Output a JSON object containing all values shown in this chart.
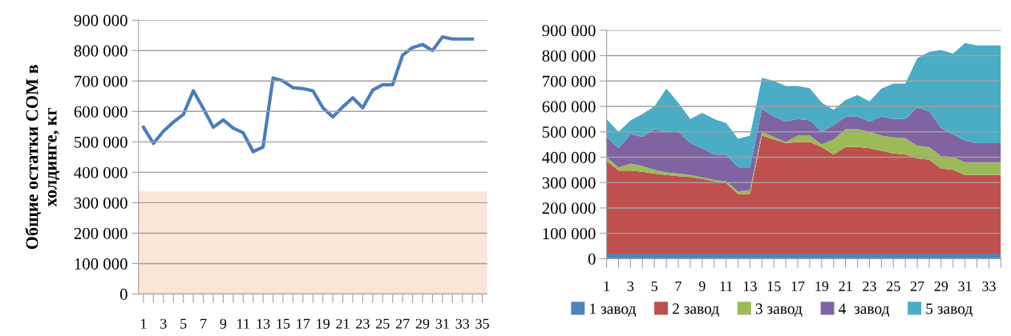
{
  "chart_data": [
    {
      "type": "line",
      "ylabel": "Общие остатки СОМ в\nхолдинге, кг",
      "categories": [
        "1",
        null,
        "3",
        null,
        "5",
        null,
        "7",
        null,
        "9",
        null,
        "11",
        null,
        "13",
        null,
        "15",
        null,
        "17",
        null,
        "19",
        null,
        "21",
        null,
        "23",
        null,
        "25",
        null,
        "27",
        null,
        "29",
        null,
        "31",
        null,
        "33",
        null,
        "35"
      ],
      "values": [
        548000,
        495000,
        535000,
        565000,
        590000,
        668000,
        610000,
        548000,
        572000,
        545000,
        530000,
        468000,
        483000,
        710000,
        700000,
        678000,
        675000,
        668000,
        612000,
        582000,
        615000,
        645000,
        612000,
        670000,
        688000,
        688000,
        785000,
        810000,
        820000,
        800000,
        845000,
        838000,
        838000,
        838000,
        null
      ],
      "color": "#4a7ebb",
      "ylim": [
        0,
        900000
      ],
      "yticks": [
        0,
        {
          "value": 100000,
          "label": "100 000"
        },
        {
          "value": 200000,
          "label": "200 000"
        },
        {
          "value": 300000,
          "label": "300 000"
        },
        {
          "value": 400000,
          "label": "400 000"
        },
        {
          "value": 500000,
          "label": "500 000"
        },
        {
          "value": 600000,
          "label": "600 000"
        },
        {
          "value": 700000,
          "label": "700 000"
        },
        {
          "value": 800000,
          "label": "800 000"
        },
        {
          "value": 900000,
          "label": "900 000"
        }
      ],
      "grid": "y",
      "bands": [
        {
          "axis": "y",
          "from": 0,
          "to": 337000,
          "color": "#fbe5d6"
        }
      ]
    },
    {
      "type": "area",
      "stacked": true,
      "legend": "bottom",
      "grid": "y",
      "categories": [
        "1",
        null,
        "3",
        null,
        "5",
        null,
        "7",
        null,
        "9",
        null,
        "11",
        null,
        "13",
        null,
        "15",
        null,
        "17",
        null,
        "19",
        null,
        "21",
        null,
        "23",
        null,
        "25",
        null,
        "27",
        null,
        "29",
        null,
        "31",
        null,
        "33",
        null
      ],
      "series": [
        {
          "name": "1 завод",
          "color": "#4f81bd",
          "values": [
            20000,
            20000,
            20000,
            20000,
            20000,
            20000,
            20000,
            20000,
            20000,
            20000,
            20000,
            20000,
            20000,
            20000,
            20000,
            20000,
            20000,
            20000,
            20000,
            20000,
            20000,
            20000,
            20000,
            20000,
            20000,
            20000,
            20000,
            20000,
            20000,
            20000,
            20000,
            20000,
            20000,
            20000
          ]
        },
        {
          "name": "2 завод",
          "color": "#c0504d",
          "values": [
            365000,
            327000,
            327000,
            322000,
            315000,
            310000,
            305000,
            302000,
            295000,
            285000,
            278000,
            235000,
            235000,
            465000,
            450000,
            435000,
            440000,
            440000,
            420000,
            390000,
            420000,
            420000,
            415000,
            405000,
            395000,
            390000,
            375000,
            370000,
            335000,
            330000,
            310000,
            310000,
            310000,
            310000
          ]
        },
        {
          "name": "3 завод",
          "color": "#9bbb59",
          "values": [
            15000,
            13000,
            28000,
            23000,
            15000,
            10000,
            10000,
            8000,
            5000,
            5000,
            7000,
            10000,
            15000,
            15000,
            10000,
            5000,
            25000,
            25000,
            10000,
            60000,
            70000,
            70000,
            65000,
            60000,
            63000,
            65000,
            50000,
            50000,
            50000,
            50000,
            50000,
            50000,
            50000,
            50000
          ]
        },
        {
          "name": "4  завод",
          "color": "#8064a2",
          "values": [
            80000,
            75000,
            115000,
            115000,
            160000,
            160000,
            165000,
            125000,
            115000,
            100000,
            105000,
            95000,
            90000,
            90000,
            80000,
            80000,
            65000,
            60000,
            50000,
            55000,
            50000,
            50000,
            40000,
            75000,
            72000,
            75000,
            150000,
            140000,
            110000,
            90000,
            85000,
            75000,
            75000,
            75000
          ]
        },
        {
          "name": "5 завод",
          "color": "#4bacc6",
          "values": [
            70000,
            65000,
            55000,
            90000,
            90000,
            170000,
            115000,
            95000,
            140000,
            140000,
            125000,
            112000,
            125000,
            123000,
            140000,
            140000,
            130000,
            127000,
            115000,
            62000,
            65000,
            85000,
            80000,
            110000,
            140000,
            140000,
            195000,
            235000,
            307000,
            318000,
            385000,
            385000,
            385000,
            385000
          ]
        }
      ],
      "ylim": [
        0,
        900000
      ],
      "yticks": [
        0,
        {
          "value": 100000,
          "label": "100 000"
        },
        {
          "value": 200000,
          "label": "200 000"
        },
        {
          "value": 300000,
          "label": "300 000"
        },
        {
          "value": 400000,
          "label": "400 000"
        },
        {
          "value": 500000,
          "label": "500 000"
        },
        {
          "value": 600000,
          "label": "600 000"
        },
        {
          "value": 700000,
          "label": "700 000"
        },
        {
          "value": 800000,
          "label": "800 000"
        },
        {
          "value": 900000,
          "label": "900 000"
        }
      ]
    }
  ]
}
